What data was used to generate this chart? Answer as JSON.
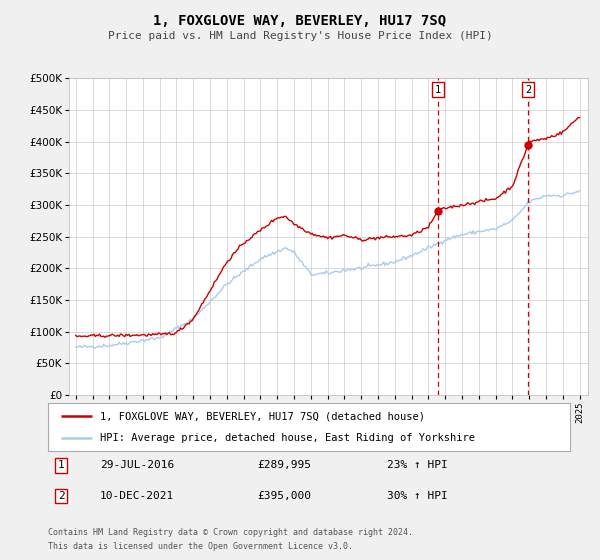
{
  "title": "1, FOXGLOVE WAY, BEVERLEY, HU17 7SQ",
  "subtitle": "Price paid vs. HM Land Registry's House Price Index (HPI)",
  "red_label": "1, FOXGLOVE WAY, BEVERLEY, HU17 7SQ (detached house)",
  "blue_label": "HPI: Average price, detached house, East Riding of Yorkshire",
  "marker1_date": 2016.57,
  "marker1_value": 289995,
  "marker2_date": 2021.94,
  "marker2_value": 395000,
  "annotation1_date": "29-JUL-2016",
  "annotation1_price": "£289,995",
  "annotation1_hpi": "23% ↑ HPI",
  "annotation2_date": "10-DEC-2021",
  "annotation2_price": "£395,000",
  "annotation2_hpi": "30% ↑ HPI",
  "footer1": "Contains HM Land Registry data © Crown copyright and database right 2024.",
  "footer2": "This data is licensed under the Open Government Licence v3.0.",
  "ylim_max": 500000,
  "ylim_min": 0,
  "background_color": "#f0f0f0",
  "plot_bg_color": "#ffffff",
  "red_color": "#cc0000",
  "blue_color": "#aaccee",
  "grid_color": "#cccccc",
  "xmin": 1995,
  "xmax": 2025
}
